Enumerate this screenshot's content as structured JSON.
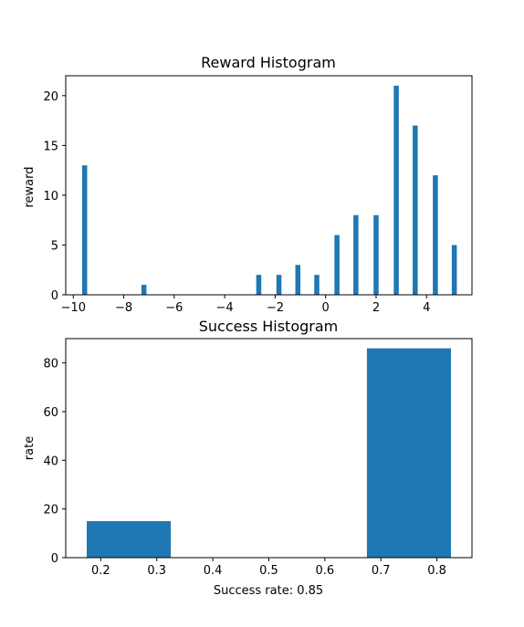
{
  "chart_data": [
    {
      "type": "bar",
      "title": "Reward Histogram",
      "xlabel": "",
      "ylabel": "reward",
      "xlim": [
        -10.3,
        5.8
      ],
      "ylim": [
        0,
        22
      ],
      "xticks": [
        -10,
        -8,
        -6,
        -4,
        -2,
        0,
        2,
        4
      ],
      "xtick_labels": [
        "−10",
        "−8",
        "−6",
        "−4",
        "−2",
        "0",
        "2",
        "4"
      ],
      "yticks": [
        0,
        5,
        10,
        15,
        20
      ],
      "ytick_labels": [
        "0",
        "5",
        "10",
        "15",
        "20"
      ],
      "bar_width": 0.2,
      "x": [
        -9.55,
        -7.2,
        -2.65,
        -1.85,
        -1.1,
        -0.35,
        0.45,
        1.2,
        2.0,
        2.8,
        3.55,
        4.35,
        5.1
      ],
      "values": [
        13,
        1,
        2,
        2,
        3,
        2,
        6,
        8,
        8,
        21,
        17,
        12,
        5
      ],
      "color": "#1f77b4",
      "grid": false
    },
    {
      "type": "bar",
      "title": "Success Histogram",
      "xlabel": "Success rate: 0.85",
      "ylabel": "rate",
      "xlim": [
        0.1375,
        0.8625
      ],
      "ylim": [
        0,
        90
      ],
      "xticks": [
        0.2,
        0.3,
        0.4,
        0.5,
        0.6,
        0.7,
        0.8
      ],
      "xtick_labels": [
        "0.2",
        "0.3",
        "0.4",
        "0.5",
        "0.6",
        "0.7",
        "0.8"
      ],
      "yticks": [
        0,
        20,
        40,
        60,
        80
      ],
      "ytick_labels": [
        "0",
        "20",
        "40",
        "60",
        "80"
      ],
      "bar_width": 0.15,
      "x": [
        0.25,
        0.75
      ],
      "values": [
        15,
        86
      ],
      "color": "#1f77b4",
      "grid": false
    }
  ]
}
